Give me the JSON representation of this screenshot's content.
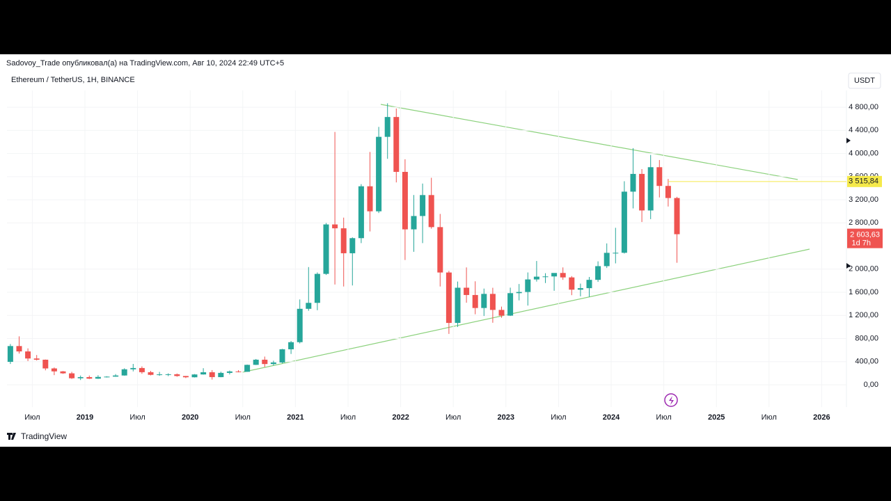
{
  "header": {
    "publisher": "Sadovoy_Trade опубликовал(а) на TradingView.com, Авг 10, 2024 22:49 UTC+5",
    "brand": "TradingView"
  },
  "chart_data": {
    "type": "candlestick",
    "title": "Ethereum / TetherUS, 1H, BINANCE",
    "currency": "USDT",
    "up_color": "#26a69a",
    "down_color": "#ef5350",
    "categories": [
      null,
      null,
      null,
      "Июл",
      null,
      null,
      null,
      null,
      null,
      "2019",
      null,
      null,
      null,
      null,
      null,
      "Июл",
      null,
      null,
      null,
      null,
      null,
      "2020",
      null,
      null,
      null,
      null,
      null,
      "Июл",
      null,
      null,
      null,
      null,
      null,
      "2021",
      null,
      null,
      null,
      null,
      null,
      "Июл",
      null,
      null,
      null,
      null,
      null,
      "2022",
      null,
      null,
      null,
      null,
      null,
      "Июл",
      null,
      null,
      null,
      null,
      null,
      "2023",
      null,
      null,
      null,
      null,
      null,
      "Июл",
      null,
      null,
      null,
      null,
      null,
      "2024",
      null,
      null,
      null,
      null,
      null,
      "Июл",
      null,
      null,
      null,
      null,
      null,
      "2025",
      null,
      null,
      null,
      null,
      null,
      "Июл",
      null,
      null,
      null,
      null,
      null,
      "2026"
    ],
    "open": [
      397,
      670,
      577,
      455,
      434,
      283,
      232,
      198,
      113,
      133,
      106,
      136,
      141,
      161,
      268,
      290,
      218,
      172,
      180,
      182,
      152,
      130,
      179,
      217,
      133,
      206,
      231,
      225,
      345,
      434,
      359,
      386,
      614,
      737,
      1314,
      1417,
      1918,
      2773,
      2706,
      2275,
      2536,
      3433,
      3000,
      4288,
      4631,
      3682,
      2688,
      2919,
      3281,
      2727,
      1942,
      1070,
      1679,
      1553,
      1328,
      1572,
      1295,
      1196,
      1585,
      1605,
      1822,
      1870,
      1874,
      1934,
      1857,
      1645,
      1671,
      1815,
      2052,
      2282,
      2283,
      3340,
      3647,
      3015,
      3763,
      3439,
      3230,
      null,
      null,
      null,
      null,
      null,
      null,
      null,
      null,
      null,
      null,
      null,
      null,
      null,
      null,
      null,
      null,
      null
    ],
    "high": [
      705,
      838,
      630,
      515,
      437,
      300,
      237,
      224,
      160,
      160,
      165,
      148,
      185,
      285,
      361,
      318,
      240,
      223,
      198,
      195,
      153,
      185,
      287,
      254,
      227,
      246,
      253,
      350,
      446,
      488,
      417,
      622,
      757,
      1476,
      2036,
      1943,
      2797,
      4372,
      2891,
      2550,
      3470,
      4027,
      4460,
      4868,
      4778,
      3900,
      3282,
      3480,
      3580,
      2955,
      1970,
      1785,
      2030,
      1790,
      1664,
      1678,
      1352,
      1680,
      1743,
      1943,
      2141,
      1930,
      1930,
      2030,
      1880,
      1750,
      1865,
      2135,
      2445,
      2715,
      3520,
      4093,
      3730,
      3975,
      3887,
      3560,
      3250,
      null,
      null,
      null,
      null,
      null,
      null,
      null,
      null,
      null,
      null,
      null,
      null,
      null,
      null,
      null,
      null,
      null
    ],
    "low": [
      360,
      540,
      410,
      420,
      250,
      167,
      190,
      101,
      82,
      100,
      102,
      127,
      140,
      158,
      232,
      190,
      163,
      155,
      150,
      139,
      116,
      127,
      176,
      90,
      130,
      179,
      215,
      224,
      342,
      308,
      335,
      371,
      533,
      715,
      1280,
      1290,
      1900,
      1735,
      1700,
      1718,
      2450,
      2652,
      2970,
      3908,
      3500,
      2159,
      2300,
      2450,
      2700,
      1700,
      880,
      1000,
      1420,
      1220,
      1190,
      1073,
      1160,
      1190,
      1460,
      1370,
      1785,
      1760,
      1626,
      1815,
      1550,
      1530,
      1520,
      1780,
      2020,
      2100,
      2270,
      3050,
      2815,
      2865,
      3240,
      3083,
      2111,
      null,
      null,
      null,
      null,
      null,
      null,
      null,
      null,
      null,
      null,
      null,
      null,
      null,
      null,
      null,
      null,
      null
    ],
    "close": [
      670,
      577,
      455,
      434,
      283,
      232,
      198,
      113,
      133,
      106,
      136,
      141,
      161,
      268,
      290,
      218,
      172,
      180,
      182,
      152,
      130,
      179,
      217,
      133,
      206,
      231,
      225,
      345,
      434,
      359,
      386,
      614,
      737,
      1314,
      1417,
      1918,
      2773,
      2706,
      2275,
      2536,
      3433,
      3000,
      4288,
      4631,
      3682,
      2688,
      2919,
      3281,
      2727,
      1942,
      1070,
      1679,
      1553,
      1328,
      1572,
      1295,
      1196,
      1585,
      1605,
      1822,
      1870,
      1874,
      1934,
      1857,
      1645,
      1671,
      1815,
      2052,
      2282,
      2283,
      3340,
      3647,
      3015,
      3763,
      3439,
      3230,
      2604,
      null,
      null,
      null,
      null,
      null,
      null,
      null,
      null,
      null,
      null,
      null,
      null,
      null,
      null,
      null,
      null,
      null
    ],
    "ylim": [
      -385,
      5090
    ],
    "yticks": [
      {
        "value": 0,
        "label": "0,00"
      },
      {
        "value": 400,
        "label": "400,00"
      },
      {
        "value": 800,
        "label": "800,00"
      },
      {
        "value": 1200,
        "label": "1 200,00"
      },
      {
        "value": 1600,
        "label": "1 600,00"
      },
      {
        "value": 2000,
        "label": "2 000,00"
      },
      {
        "value": 2800,
        "label": "2 800,00"
      },
      {
        "value": 3200,
        "label": "3 200,00"
      },
      {
        "value": 3600,
        "label": "3 600,00"
      },
      {
        "value": 4000,
        "label": "4 000,00"
      },
      {
        "value": 4400,
        "label": "4 400,00"
      },
      {
        "value": 4800,
        "label": "4 800,00"
      }
    ],
    "grid": true,
    "price_line": {
      "value": 3515.84,
      "label": "3 515,84",
      "color": "#f5e94a"
    },
    "last_price": {
      "value": 2603.63,
      "label": "2 603,63",
      "countdown": "1d 7h"
    }
  }
}
